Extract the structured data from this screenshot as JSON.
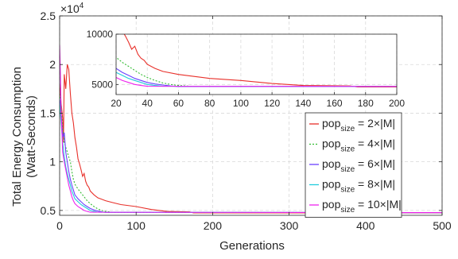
{
  "chart_data": {
    "type": "line",
    "title": "",
    "xlabel": "Generations",
    "ylabel_line1": "Total Energy Consumption",
    "ylabel_line2": "(Watt-Seconds)",
    "y_exponent_base": "×10",
    "y_exponent_power": "4",
    "xlim": [
      0,
      500
    ],
    "ylim": [
      4500,
      25000
    ],
    "xticks": [
      0,
      100,
      200,
      300,
      400,
      500
    ],
    "yticks": [
      5000,
      10000,
      15000,
      20000,
      25000
    ],
    "ytick_labels": [
      "0.5",
      "1",
      "1.5",
      "2",
      "2.5"
    ],
    "grid": true,
    "legend_position": "right",
    "legend": [
      {
        "base": "pop",
        "sub": "size",
        "eq": " = 2×|M|"
      },
      {
        "base": "pop",
        "sub": "size",
        "eq": " = 4×|M|"
      },
      {
        "base": "pop",
        "sub": "size",
        "eq": " = 6×|M|"
      },
      {
        "base": "pop",
        "sub": "size",
        "eq": " = 8×|M|"
      },
      {
        "base": "pop",
        "sub": "size",
        "eq": " = 10×|M|"
      }
    ],
    "series": [
      {
        "color": "#e8302a",
        "dash": "",
        "points": [
          [
            0,
            18000
          ],
          [
            2,
            16000
          ],
          [
            4,
            14500
          ],
          [
            5,
            12000
          ],
          [
            6,
            19000
          ],
          [
            8,
            17500
          ],
          [
            10,
            20000
          ],
          [
            12,
            19500
          ],
          [
            14,
            17000
          ],
          [
            16,
            15000
          ],
          [
            18,
            14000
          ],
          [
            20,
            12500
          ],
          [
            22,
            11500
          ],
          [
            24,
            10300
          ],
          [
            26,
            9800
          ],
          [
            28,
            9200
          ],
          [
            30,
            8500
          ],
          [
            32,
            8800
          ],
          [
            34,
            8000
          ],
          [
            36,
            7600
          ],
          [
            38,
            7400
          ],
          [
            40,
            7000
          ],
          [
            45,
            6600
          ],
          [
            50,
            6300
          ],
          [
            60,
            6000
          ],
          [
            70,
            5800
          ],
          [
            80,
            5600
          ],
          [
            100,
            5400
          ],
          [
            120,
            5100
          ],
          [
            140,
            4900
          ],
          [
            170,
            4850
          ],
          [
            175,
            4750
          ],
          [
            500,
            4750
          ]
        ]
      },
      {
        "color": "#33bb33",
        "dash": "2,2",
        "points": [
          [
            0,
            17000
          ],
          [
            2,
            16000
          ],
          [
            4,
            13500
          ],
          [
            6,
            12000
          ],
          [
            8,
            11500
          ],
          [
            10,
            11000
          ],
          [
            12,
            10500
          ],
          [
            14,
            10000
          ],
          [
            16,
            9000
          ],
          [
            18,
            8200
          ],
          [
            20,
            7700
          ],
          [
            24,
            7200
          ],
          [
            28,
            6800
          ],
          [
            32,
            6400
          ],
          [
            36,
            6000
          ],
          [
            40,
            5700
          ],
          [
            45,
            5400
          ],
          [
            50,
            5150
          ],
          [
            55,
            5000
          ],
          [
            60,
            4900
          ],
          [
            70,
            4800
          ],
          [
            500,
            4780
          ]
        ]
      },
      {
        "color": "#6a40ff",
        "dash": "",
        "points": [
          [
            0,
            16500
          ],
          [
            2,
            15000
          ],
          [
            4,
            12500
          ],
          [
            6,
            13000
          ],
          [
            8,
            11000
          ],
          [
            10,
            10000
          ],
          [
            12,
            9000
          ],
          [
            14,
            8200
          ],
          [
            16,
            7600
          ],
          [
            18,
            7100
          ],
          [
            20,
            6600
          ],
          [
            24,
            6200
          ],
          [
            28,
            5900
          ],
          [
            32,
            5600
          ],
          [
            36,
            5400
          ],
          [
            40,
            5200
          ],
          [
            45,
            5050
          ],
          [
            50,
            4950
          ],
          [
            55,
            4850
          ],
          [
            60,
            4800
          ],
          [
            500,
            4780
          ]
        ]
      },
      {
        "color": "#22ccdd",
        "dash": "",
        "points": [
          [
            0,
            16000
          ],
          [
            2,
            14000
          ],
          [
            4,
            12000
          ],
          [
            6,
            10500
          ],
          [
            8,
            9500
          ],
          [
            10,
            8800
          ],
          [
            12,
            8200
          ],
          [
            14,
            7600
          ],
          [
            16,
            7000
          ],
          [
            18,
            6600
          ],
          [
            20,
            6200
          ],
          [
            24,
            5900
          ],
          [
            28,
            5600
          ],
          [
            32,
            5400
          ],
          [
            36,
            5200
          ],
          [
            40,
            5000
          ],
          [
            45,
            4900
          ],
          [
            50,
            4820
          ],
          [
            500,
            4780
          ]
        ]
      },
      {
        "color": "#ee22ee",
        "dash": "",
        "points": [
          [
            0,
            22000
          ],
          [
            1,
            19000
          ],
          [
            2,
            15000
          ],
          [
            3,
            13000
          ],
          [
            4,
            11000
          ],
          [
            6,
            10000
          ],
          [
            8,
            9200
          ],
          [
            10,
            8400
          ],
          [
            12,
            7600
          ],
          [
            14,
            7000
          ],
          [
            16,
            6400
          ],
          [
            18,
            6000
          ],
          [
            20,
            5700
          ],
          [
            24,
            5400
          ],
          [
            28,
            5200
          ],
          [
            32,
            5000
          ],
          [
            36,
            4900
          ],
          [
            40,
            4820
          ],
          [
            500,
            4780
          ]
        ]
      }
    ],
    "inset": {
      "xlim": [
        20,
        200
      ],
      "ylim": [
        4000,
        10000
      ],
      "xticks": [
        20,
        40,
        60,
        80,
        100,
        120,
        140,
        160,
        180,
        200
      ],
      "yticks": [
        5000,
        10000
      ],
      "ytick_labels": [
        "5000",
        "10000"
      ],
      "grid": true
    }
  }
}
